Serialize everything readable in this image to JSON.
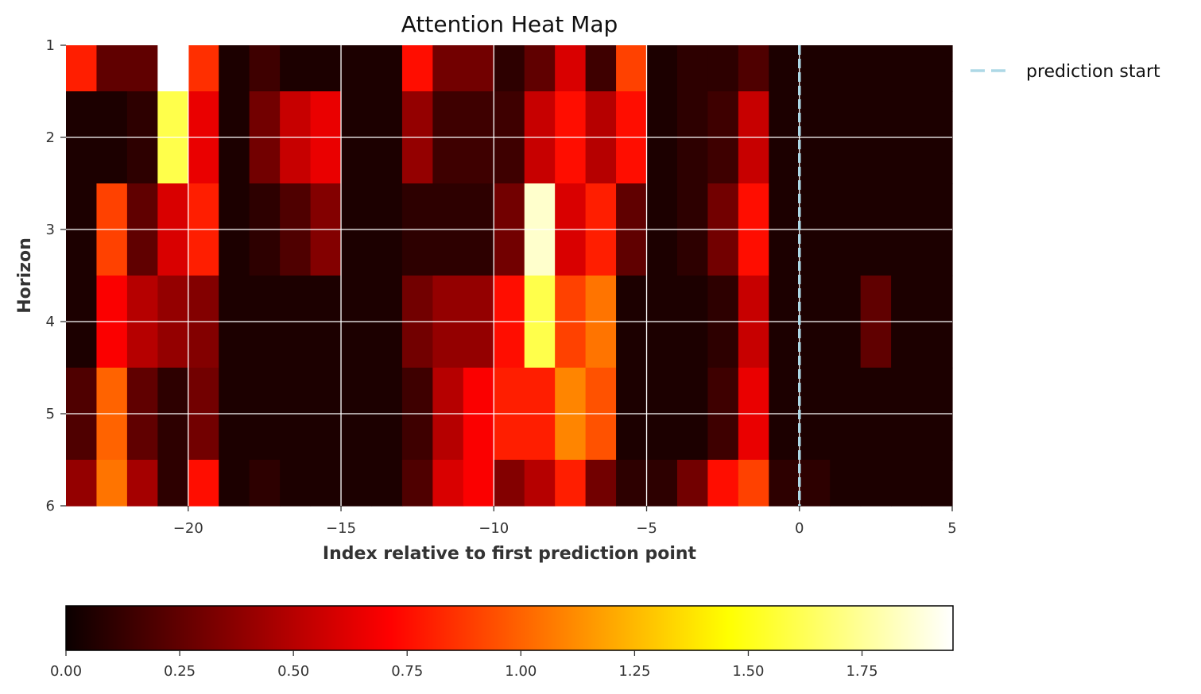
{
  "chart_data": {
    "type": "heatmap",
    "title": "Attention Heat Map",
    "xlabel": "Index relative to first prediction point",
    "ylabel": "Horizon",
    "x_start": -24,
    "x_end": 5,
    "xlim": [
      -24,
      5
    ],
    "x_ticks": [
      -20,
      -15,
      -10,
      -5,
      0,
      5
    ],
    "x_tick_labels": [
      "−20",
      "−15",
      "−10",
      "−5",
      "0",
      "5"
    ],
    "y_ticks": [
      1,
      2,
      3,
      4,
      5,
      6
    ],
    "y_tick_labels": [
      "1",
      "2",
      "3",
      "4",
      "5",
      "6"
    ],
    "row_edges": [
      1,
      1.5,
      2.5,
      3.5,
      4.5,
      5.5,
      6
    ],
    "grid": true,
    "prediction_start": 0,
    "legend": {
      "label": "prediction start",
      "color": "#add8e6",
      "placement": "outside-top-right"
    },
    "colormap": "hot",
    "colorbar": {
      "vmin": 0,
      "vmax": 1.95,
      "ticks": [
        0,
        0.25,
        0.5,
        0.75,
        1,
        1.25,
        1.5,
        1.75
      ],
      "tick_labels": [
        "0.00",
        "0.25",
        "0.50",
        "0.75",
        "1.00",
        "1.25",
        "1.50",
        "1.75"
      ]
    },
    "values": [
      [
        0.8,
        0.25,
        0.25,
        1.95,
        0.85,
        0.05,
        0.15,
        0.05,
        0.05,
        0.05,
        0.05,
        0.75,
        0.3,
        0.3,
        0.1,
        0.25,
        0.6,
        0.15,
        0.9,
        0.05,
        0.1,
        0.1,
        0.2,
        0.05,
        0.05,
        0.05,
        0.05,
        0.05,
        0.05
      ],
      [
        0.05,
        0.05,
        0.1,
        1.6,
        0.65,
        0.05,
        0.3,
        0.55,
        0.65,
        0.05,
        0.05,
        0.4,
        0.15,
        0.15,
        0.15,
        0.55,
        0.75,
        0.5,
        0.75,
        0.05,
        0.1,
        0.15,
        0.55,
        0.05,
        0.05,
        0.05,
        0.05,
        0.05,
        0.05
      ],
      [
        0.05,
        0.9,
        0.25,
        0.6,
        0.8,
        0.05,
        0.1,
        0.2,
        0.35,
        0.05,
        0.05,
        0.1,
        0.1,
        0.1,
        0.3,
        1.85,
        0.6,
        0.8,
        0.25,
        0.05,
        0.1,
        0.3,
        0.75,
        0.05,
        0.05,
        0.05,
        0.05,
        0.05,
        0.05
      ],
      [
        0.05,
        0.7,
        0.5,
        0.4,
        0.35,
        0.05,
        0.05,
        0.05,
        0.05,
        0.05,
        0.05,
        0.3,
        0.4,
        0.4,
        0.75,
        1.6,
        0.9,
        1.05,
        0.05,
        0.05,
        0.05,
        0.1,
        0.55,
        0.05,
        0.05,
        0.05,
        0.25,
        0.05,
        0.05
      ],
      [
        0.2,
        1.0,
        0.25,
        0.1,
        0.3,
        0.05,
        0.05,
        0.05,
        0.05,
        0.05,
        0.05,
        0.15,
        0.5,
        0.7,
        0.8,
        0.8,
        1.1,
        0.95,
        0.05,
        0.05,
        0.05,
        0.15,
        0.65,
        0.05,
        0.05,
        0.05,
        0.05,
        0.05,
        0.05
      ],
      [
        0.4,
        1.05,
        0.45,
        0.1,
        0.75,
        0.05,
        0.1,
        0.05,
        0.05,
        0.05,
        0.05,
        0.2,
        0.6,
        0.7,
        0.35,
        0.5,
        0.8,
        0.3,
        0.1,
        0.1,
        0.3,
        0.75,
        0.9,
        0.1,
        0.1,
        0.05,
        0.05,
        0.05,
        0.05
      ]
    ]
  }
}
